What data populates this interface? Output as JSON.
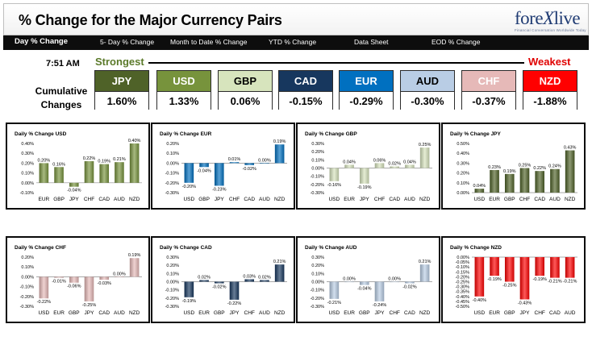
{
  "header": {
    "title": "% Change for the Major Currency Pairs",
    "logo": {
      "prefix": "fore",
      "x": "X",
      "suffix": "live",
      "tagline": "Financial Conversation Worldwide Today"
    },
    "tabs": [
      "Day % Change",
      "5- Day % Change",
      "Month to Date % Change",
      "YTD % Change",
      "Data Sheet",
      "EOD % Change"
    ],
    "active_tab": 0
  },
  "summary": {
    "time": "7:51 AM",
    "strongest_label": "Strongest",
    "weakest_label": "Weakest",
    "cumulative_label_1": "Cumulative",
    "cumulative_label_2": "Changes",
    "currencies": [
      {
        "name": "JPY",
        "value": "1.60%",
        "bg": "#4f6228",
        "fg": "#ffffff"
      },
      {
        "name": "USD",
        "value": "1.33%",
        "bg": "#77933c",
        "fg": "#ffffff"
      },
      {
        "name": "GBP",
        "value": "0.06%",
        "bg": "#d7e4bd",
        "fg": "#000000"
      },
      {
        "name": "CAD",
        "value": "-0.15%",
        "bg": "#17375e",
        "fg": "#ffffff"
      },
      {
        "name": "EUR",
        "value": "-0.29%",
        "bg": "#0070c0",
        "fg": "#ffffff"
      },
      {
        "name": "AUD",
        "value": "-0.30%",
        "bg": "#b9cde5",
        "fg": "#000000"
      },
      {
        "name": "CHF",
        "value": "-0.37%",
        "bg": "#e6b9b8",
        "fg": "#ffffff"
      },
      {
        "name": "NZD",
        "value": "-1.88%",
        "bg": "#ff0000",
        "fg": "#ffffff"
      }
    ]
  },
  "chart_data": [
    {
      "type": "bar",
      "title": "Daily % Change USD",
      "categories": [
        "EUR",
        "GBP",
        "JPY",
        "CHF",
        "CAD",
        "AUD",
        "NZD"
      ],
      "values": [
        0.2,
        0.16,
        -0.04,
        0.22,
        0.19,
        0.21,
        0.4
      ],
      "labels": [
        "0.20%",
        "0.16%",
        "-0.04%",
        "0.22%",
        "0.19%",
        "0.21%",
        "0.40%"
      ],
      "yticks": [
        "0.40%",
        "0.30%",
        "0.20%",
        "0.10%",
        "0.00%",
        "-0.10%"
      ],
      "ylim": [
        -0.1,
        0.4
      ],
      "color": "#77933c",
      "grid": false
    },
    {
      "type": "bar",
      "title": "Daily % Change EUR",
      "categories": [
        "USD",
        "GBP",
        "JPY",
        "CHF",
        "CAD",
        "AUD",
        "NZD"
      ],
      "values": [
        -0.2,
        -0.04,
        -0.23,
        0.01,
        -0.02,
        0.0,
        0.19
      ],
      "labels": [
        "-0.20%",
        "-0.04%",
        "-0.23%",
        "0.01%",
        "-0.02%",
        "0.00%",
        "0.19%"
      ],
      "yticks": [
        "0.20%",
        "0.10%",
        "0.00%",
        "-0.10%",
        "-0.20%",
        "-0.30%"
      ],
      "ylim": [
        -0.3,
        0.2
      ],
      "color": "#0070c0",
      "grid": false
    },
    {
      "type": "bar",
      "title": "Daily % Change GBP",
      "categories": [
        "USD",
        "EUR",
        "JPY",
        "CHF",
        "CAD",
        "AUD",
        "NZD"
      ],
      "values": [
        -0.16,
        0.04,
        -0.19,
        0.06,
        0.02,
        0.04,
        0.25
      ],
      "labels": [
        "-0.16%",
        "0.04%",
        "-0.19%",
        "0.06%",
        "0.02%",
        "0.04%",
        "0.25%"
      ],
      "yticks": [
        "0.30%",
        "0.20%",
        "0.10%",
        "0.00%",
        "-0.10%",
        "-0.20%",
        "-0.30%"
      ],
      "ylim": [
        -0.3,
        0.3
      ],
      "color": "#d7e4bd",
      "grid": false
    },
    {
      "type": "bar",
      "title": "Daily % Change JPY",
      "categories": [
        "USD",
        "EUR",
        "GBP",
        "CHF",
        "CAD",
        "AUD",
        "NZD"
      ],
      "values": [
        0.04,
        0.23,
        0.19,
        0.25,
        0.22,
        0.24,
        0.43
      ],
      "labels": [
        "0.04%",
        "0.23%",
        "0.19%",
        "0.25%",
        "0.22%",
        "0.24%",
        "0.43%"
      ],
      "yticks": [
        "0.50%",
        "0.40%",
        "0.30%",
        "0.20%",
        "0.10%",
        "0.00%"
      ],
      "ylim": [
        0,
        0.5
      ],
      "color": "#4f6228",
      "grid": false
    },
    {
      "type": "bar",
      "title": "Daily % Change CHF",
      "categories": [
        "USD",
        "EUR",
        "GBP",
        "JPY",
        "CAD",
        "AUD",
        "NZD"
      ],
      "values": [
        -0.22,
        -0.01,
        -0.06,
        -0.25,
        -0.03,
        0.0,
        0.19
      ],
      "labels": [
        "-0.22%",
        "-0.01%",
        "-0.06%",
        "-0.25%",
        "-0.03%",
        "0.00%",
        "0.19%"
      ],
      "yticks": [
        "0.20%",
        "0.10%",
        "0.00%",
        "-0.10%",
        "-0.20%",
        "-0.30%"
      ],
      "ylim": [
        -0.3,
        0.2
      ],
      "color": "#e6b9b8",
      "grid": false
    },
    {
      "type": "bar",
      "title": "Daily % Change CAD",
      "categories": [
        "USD",
        "EUR",
        "GBP",
        "JPY",
        "CHF",
        "AUD",
        "NZD"
      ],
      "values": [
        -0.19,
        0.02,
        -0.02,
        -0.22,
        0.03,
        0.02,
        0.21
      ],
      "labels": [
        "-0.19%",
        "0.02%",
        "-0.02%",
        "-0.22%",
        "0.03%",
        "0.02%",
        "0.21%"
      ],
      "yticks": [
        "0.30%",
        "0.20%",
        "0.10%",
        "0.00%",
        "-0.10%",
        "-0.20%",
        "-0.30%"
      ],
      "ylim": [
        -0.3,
        0.3
      ],
      "color": "#17375e",
      "grid": false
    },
    {
      "type": "bar",
      "title": "Daily % Change AUD",
      "categories": [
        "USD",
        "EUR",
        "GBP",
        "JPY",
        "CHF",
        "CAD",
        "NZD"
      ],
      "values": [
        -0.21,
        0.0,
        -0.04,
        -0.24,
        0.0,
        -0.02,
        0.21
      ],
      "labels": [
        "-0.21%",
        "0.00%",
        "-0.04%",
        "-0.24%",
        "0.00%",
        "-0.02%",
        "0.21%"
      ],
      "yticks": [
        "0.30%",
        "0.20%",
        "0.10%",
        "0.00%",
        "-0.10%",
        "-0.20%",
        "-0.30%"
      ],
      "ylim": [
        -0.3,
        0.3
      ],
      "color": "#b9cde5",
      "grid": false
    },
    {
      "type": "bar",
      "title": "Daily % Change NZD",
      "categories": [
        "USD",
        "EUR",
        "GBP",
        "JPY",
        "CHF",
        "CAD",
        "AUD"
      ],
      "values": [
        -0.4,
        -0.19,
        -0.25,
        -0.43,
        -0.19,
        -0.21,
        -0.21
      ],
      "labels": [
        "-0.40%",
        "-0.19%",
        "-0.25%",
        "-0.43%",
        "-0.19%",
        "-0.21%",
        "-0.21%"
      ],
      "yticks": [
        "0.00%",
        "-0.05%",
        "-0.10%",
        "-0.15%",
        "-0.20%",
        "-0.25%",
        "-0.30%",
        "-0.35%",
        "-0.40%",
        "-0.45%",
        "-0.50%"
      ],
      "ylim": [
        -0.5,
        0
      ],
      "color": "#ff0000",
      "grid": false
    }
  ]
}
